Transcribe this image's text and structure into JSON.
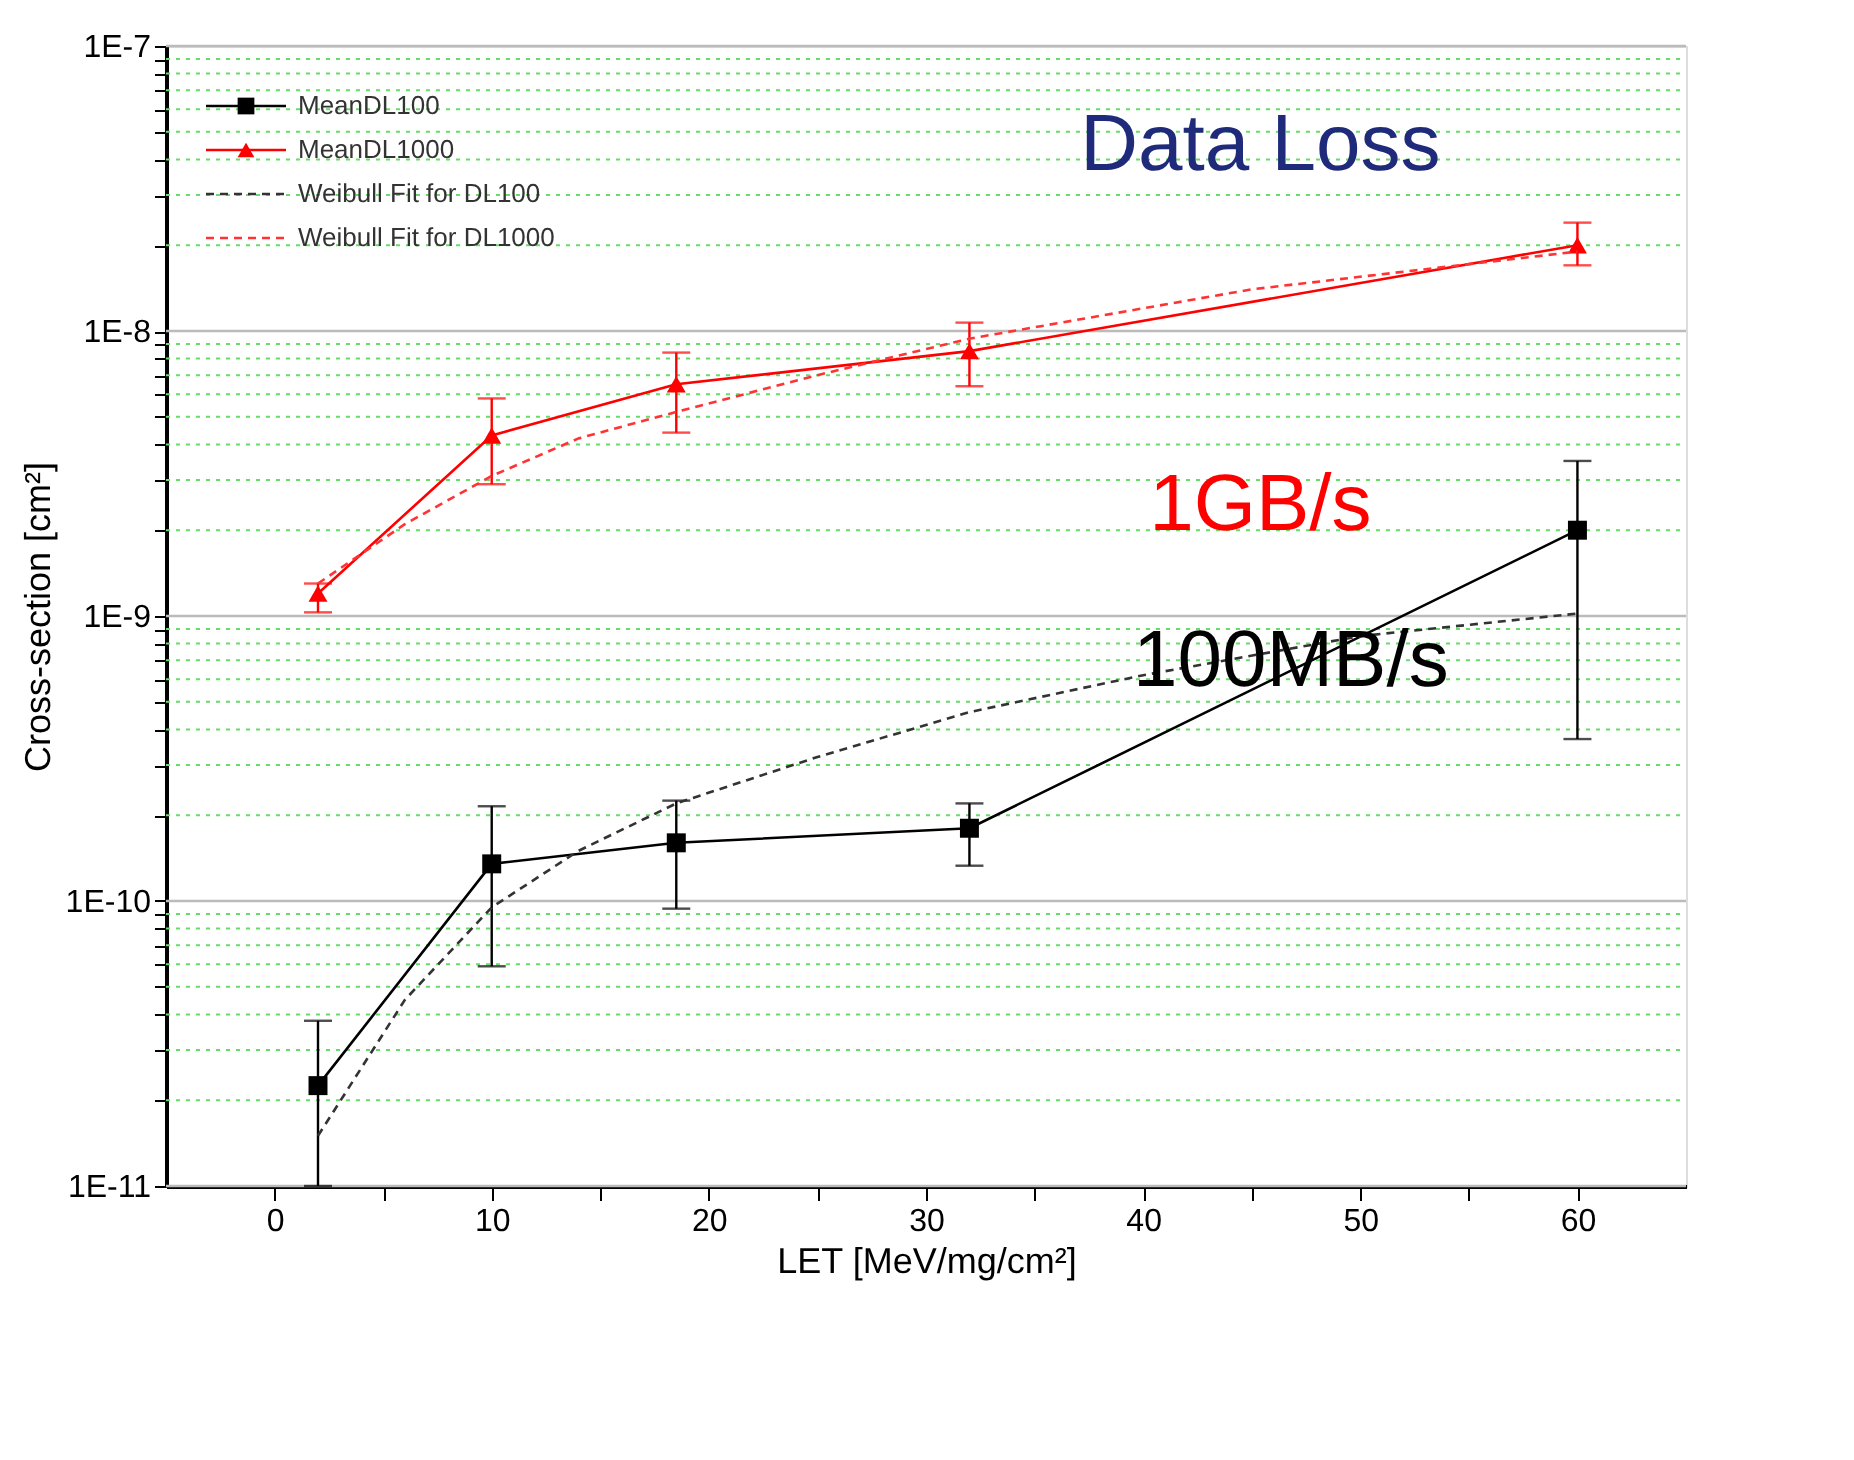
{
  "chart_data": {
    "type": "line",
    "title": "Data Loss",
    "xlabel": "LET [MeV/mg/cm²]",
    "ylabel": "Cross-section [cm²]",
    "log": "y",
    "grid": "y",
    "legend": "top left",
    "xlim": [
      -5,
      65
    ],
    "xticks": [
      0,
      {
        "value": 5,
        "label": null
      },
      10,
      {
        "value": 15,
        "label": null
      },
      20,
      {
        "value": 25,
        "label": null
      },
      30,
      {
        "value": 35,
        "label": null
      },
      40,
      {
        "value": 45,
        "label": null
      },
      50,
      {
        "value": 55,
        "label": null
      },
      60
    ],
    "ylim": [
      1e-11,
      1e-07
    ],
    "yticks": [
      {
        "value": 1e-11,
        "label": "1E-11"
      },
      {
        "value": 2e-11,
        "label": null
      },
      {
        "value": 3e-11,
        "label": null
      },
      {
        "value": 4e-11,
        "label": null
      },
      {
        "value": 5e-11,
        "label": null
      },
      {
        "value": 6e-11,
        "label": null
      },
      {
        "value": 7e-11,
        "label": null
      },
      {
        "value": 8e-11,
        "label": null
      },
      {
        "value": 9e-11,
        "label": null
      },
      {
        "value": 1e-10,
        "label": "1E-10"
      },
      {
        "value": 2e-10,
        "label": null
      },
      {
        "value": 3e-10,
        "label": null
      },
      {
        "value": 4e-10,
        "label": null
      },
      {
        "value": 5e-10,
        "label": null
      },
      {
        "value": 6e-10,
        "label": null
      },
      {
        "value": 7e-10,
        "label": null
      },
      {
        "value": 8e-10,
        "label": null
      },
      {
        "value": 9e-10,
        "label": null
      },
      {
        "value": 1e-09,
        "label": "1E-9"
      },
      {
        "value": 2e-09,
        "label": null
      },
      {
        "value": 3e-09,
        "label": null
      },
      {
        "value": 4e-09,
        "label": null
      },
      {
        "value": 5e-09,
        "label": null
      },
      {
        "value": 6e-09,
        "label": null
      },
      {
        "value": 7e-09,
        "label": null
      },
      {
        "value": 8e-09,
        "label": null
      },
      {
        "value": 9e-09,
        "label": null
      },
      {
        "value": 1e-08,
        "label": "1E-8"
      },
      {
        "value": 2e-08,
        "label": null
      },
      {
        "value": 3e-08,
        "label": null
      },
      {
        "value": 4e-08,
        "label": null
      },
      {
        "value": 5e-08,
        "label": null
      },
      {
        "value": 6e-08,
        "label": null
      },
      {
        "value": 7e-08,
        "label": null
      },
      {
        "value": 8e-08,
        "label": null
      },
      {
        "value": 9e-08,
        "label": null
      },
      {
        "value": 1e-07,
        "label": "1E-7"
      }
    ],
    "series": [
      {
        "name": "MeanDL100",
        "color": "#000000",
        "marker": "square",
        "line_style": "solid",
        "x": [
          2,
          10,
          18.5,
          32,
          60
        ],
        "values": [
          2.25e-11,
          1.35e-10,
          1.6e-10,
          1.8e-10,
          2e-09
        ],
        "errors": [
          [
            1e-11,
            3.8e-11
          ],
          [
            5.9e-11,
            2.15e-10
          ],
          [
            9.4e-11,
            2.25e-10
          ],
          [
            1.33e-10,
            2.2e-10
          ],
          [
            3.7e-10,
            3.5e-09
          ]
        ]
      },
      {
        "name": "MeanDL1000",
        "color": "#ff0000",
        "marker": "triangle",
        "line_style": "solid",
        "x": [
          2,
          10,
          18.5,
          32,
          60
        ],
        "values": [
          1.2e-09,
          4.3e-09,
          6.5e-09,
          8.5e-09,
          2e-08
        ],
        "errors": [
          [
            1.03e-09,
            1.3e-09
          ],
          [
            2.9e-09,
            5.8e-09
          ],
          [
            4.4e-09,
            8.4e-09
          ],
          [
            6.4e-09,
            1.07e-08
          ],
          [
            1.7e-08,
            2.4e-08
          ]
        ]
      },
      {
        "name": "Weibull Fit for DL100",
        "color": "#333333",
        "marker": "none",
        "line_style": "dashed",
        "x": [
          2,
          6,
          10,
          14,
          18.5,
          25,
          32,
          40,
          50,
          60
        ],
        "values": [
          1.5e-11,
          4.5e-11,
          9.5e-11,
          1.5e-10,
          2.2e-10,
          3.2e-10,
          4.6e-10,
          6.2e-10,
          8.5e-10,
          1.02e-09
        ]
      },
      {
        "name": "Weibull Fit for DL1000",
        "color": "#ff3333",
        "marker": "none",
        "line_style": "dashed",
        "x": [
          2,
          6,
          10,
          14,
          18.5,
          25,
          32,
          45,
          60
        ],
        "values": [
          1.3e-09,
          2.1e-09,
          3.1e-09,
          4.2e-09,
          5.2e-09,
          7e-09,
          9.4e-09,
          1.4e-08,
          1.9e-08
        ]
      }
    ],
    "annotations": [
      "1GB/s",
      "100MB/s"
    ]
  }
}
